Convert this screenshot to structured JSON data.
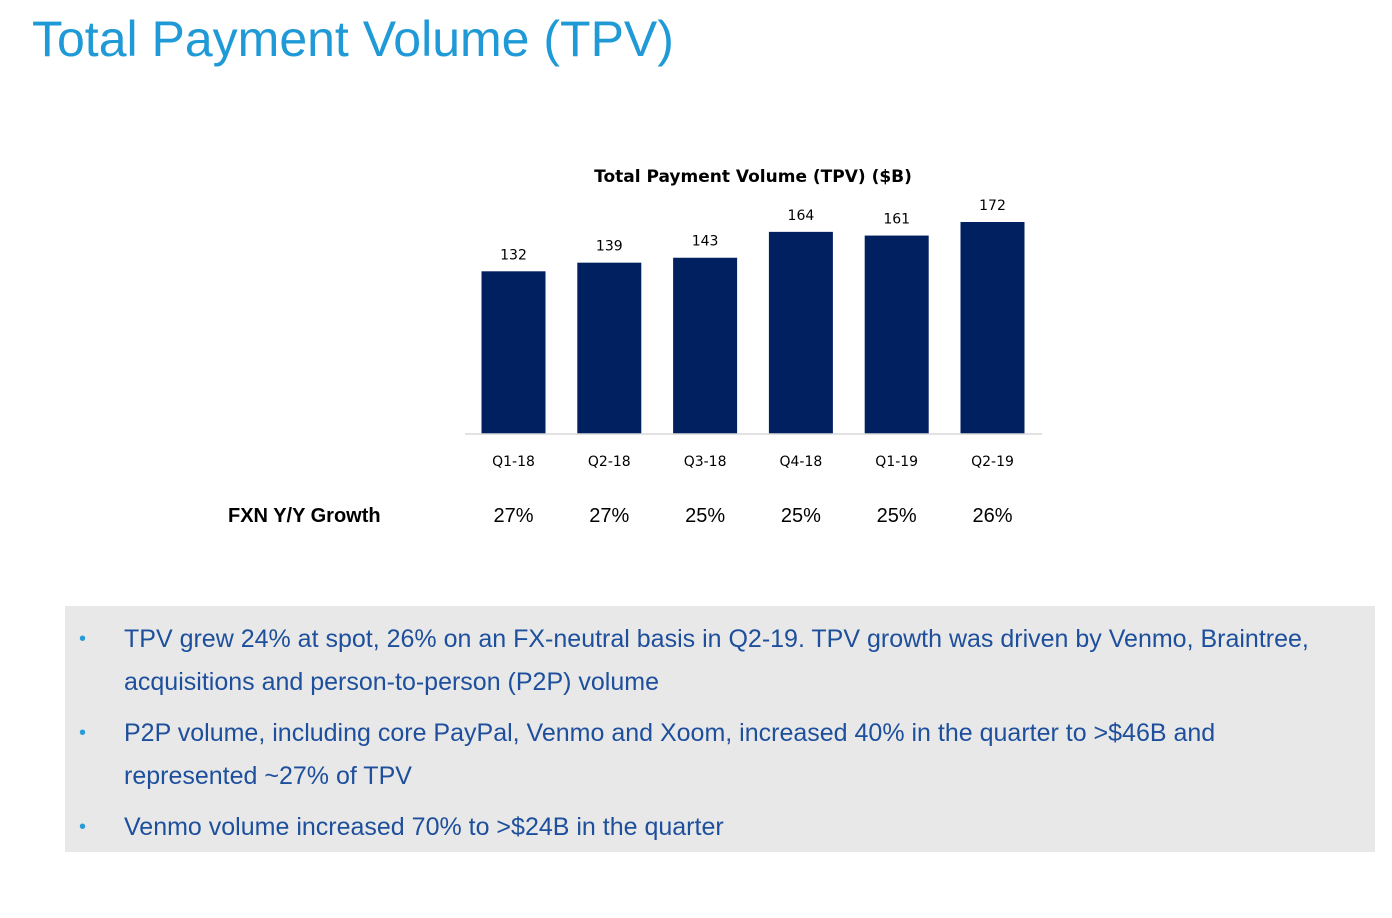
{
  "slide": {
    "title": "Total Payment Volume (TPV)"
  },
  "chart_data": {
    "type": "bar",
    "title": "Total Payment Volume (TPV) ($B)",
    "categories": [
      "Q1-18",
      "Q2-18",
      "Q3-18",
      "Q4-18",
      "Q1-19",
      "Q2-19"
    ],
    "values": [
      132,
      139,
      143,
      164,
      161,
      172
    ],
    "ylim": [
      0,
      172
    ],
    "xlabel": "",
    "ylabel": "",
    "grid": false,
    "legend": "none",
    "bar_color": "#012060",
    "axis_color": "#d9d9d9"
  },
  "growth_row": {
    "label": "FXN Y/Y Growth",
    "values": [
      "27%",
      "27%",
      "25%",
      "25%",
      "25%",
      "26%"
    ]
  },
  "notes": {
    "bullet_glyph": "•",
    "items": [
      "TPV grew 24% at spot, 26% on an FX-neutral basis in Q2-19. TPV growth was driven by Venmo, Braintree, acquisitions and person-to-person (P2P) volume",
      "P2P volume, including core PayPal, Venmo and Xoom, increased 40% in the quarter to >$46B and represented ~27% of TPV",
      "Venmo volume increased 70% to >$24B in the quarter"
    ]
  },
  "colors": {
    "title": "#1f9ad6",
    "notes_text": "#1d4f9c",
    "bullet": "#2a9bd7",
    "notes_background": "#e8e8e8"
  }
}
